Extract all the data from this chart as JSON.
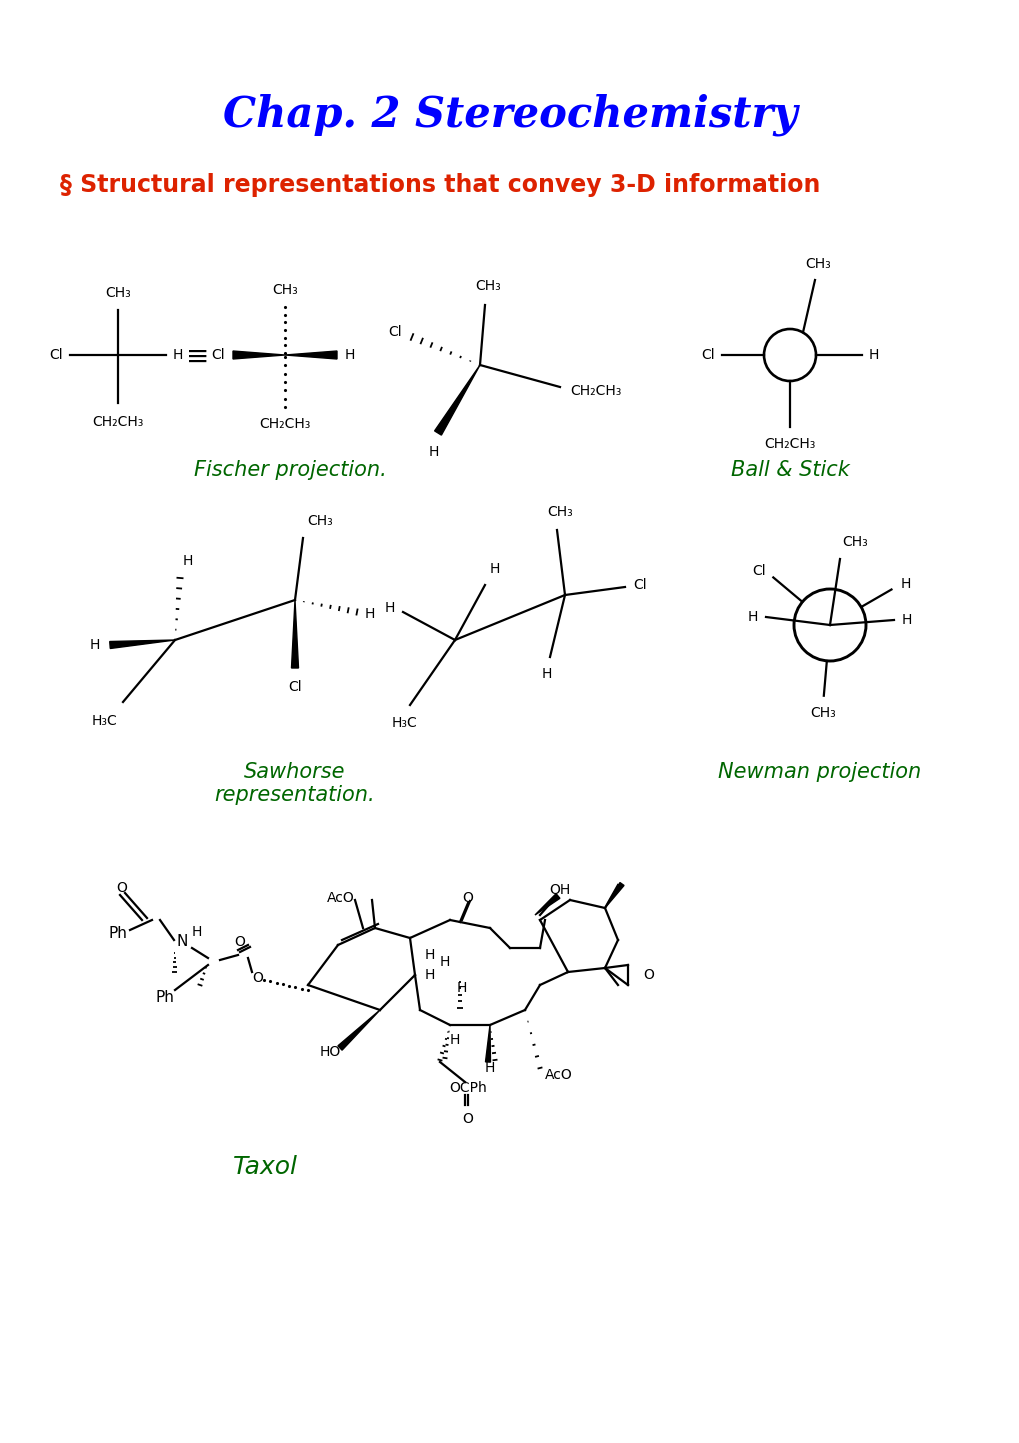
{
  "title": "Chap. 2 Stereochemistry",
  "subtitle": "§ Structural representations that convey 3-D information",
  "title_color": "#0000ff",
  "subtitle_color": "#dd2200",
  "label_fischer": "Fischer projection.",
  "label_ball_stick": "Ball & Stick",
  "label_sawhorse": "Sawhorse\nrepresentation.",
  "label_newman": "Newman projection",
  "label_taxol": "Taxol",
  "label_color": "#006600",
  "bg_color": "white",
  "figsize": [
    10.2,
    14.43
  ],
  "dpi": 100
}
